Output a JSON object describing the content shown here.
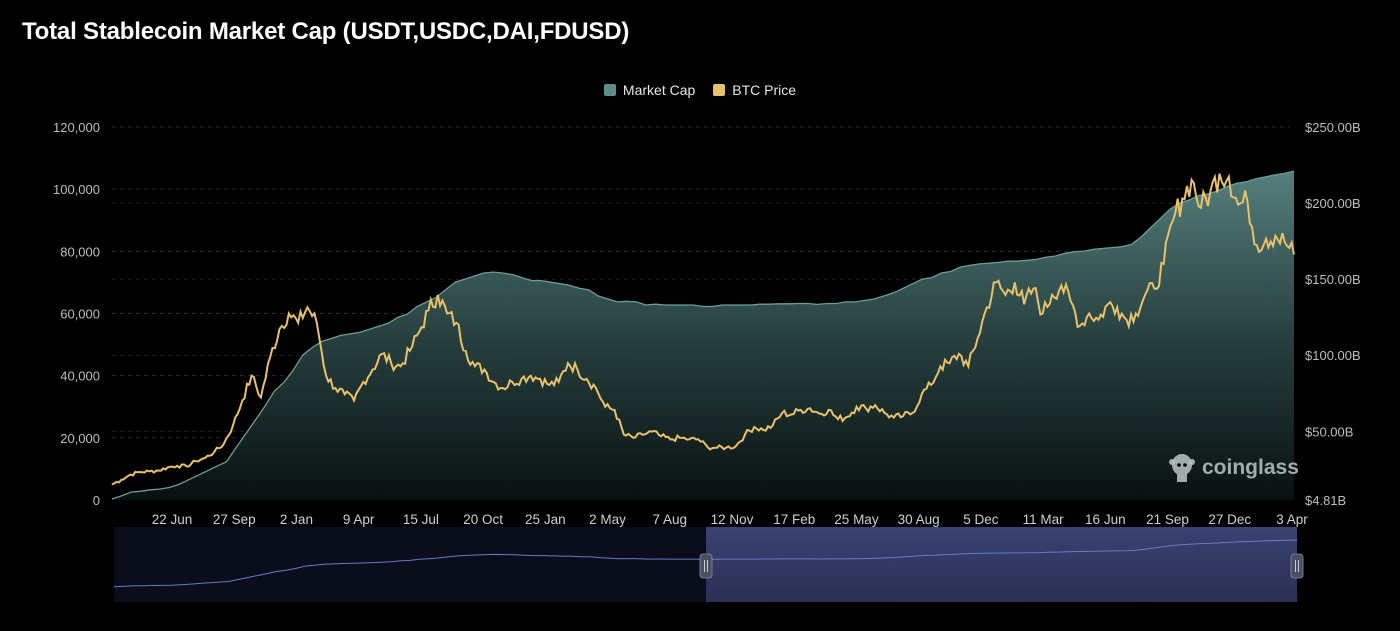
{
  "title": "Total Stablecoin Market Cap (USDT,USDC,DAI,FDUSD)",
  "legend": [
    {
      "label": "Market Cap",
      "color": "#5f8f8c"
    },
    {
      "label": "BTC Price",
      "color": "#e8c16b"
    }
  ],
  "watermark": {
    "text": "coinglass",
    "icon": "coinglass-logo-icon"
  },
  "colors": {
    "market_cap_line": "#6e9c99",
    "btc_line": "#e8c16b",
    "background": "#000000",
    "navigator_fill": "#2a2f52"
  },
  "chart_data": {
    "type": "line",
    "x_tick_labels": [
      "22 Jun",
      "27 Sep",
      "2 Jan",
      "9 Apr",
      "15 Jul",
      "20 Oct",
      "25 Jan",
      "2 May",
      "7 Aug",
      "12 Nov",
      "17 Feb",
      "25 May",
      "30 Aug",
      "5 Dec",
      "11 Mar",
      "16 Jun",
      "21 Sep",
      "27 Dec",
      "3 Apr"
    ],
    "left_axis": {
      "ticks": [
        "0",
        "20,000",
        "40,000",
        "60,000",
        "80,000",
        "100,000",
        "120,000"
      ],
      "range": [
        0,
        120000
      ]
    },
    "right_axis": {
      "ticks": [
        "$4.81B",
        "$50.00B",
        "$100.00B",
        "$150.00B",
        "$200.00B",
        "$250.00B"
      ],
      "range": [
        4.81,
        250
      ]
    },
    "grid": true,
    "legend_position": "top-center",
    "series": [
      {
        "name": "BTC Price",
        "axis": "left",
        "values": [
          5000,
          6500,
          8200,
          9000,
          9200,
          9500,
          10500,
          11000,
          10800,
          12500,
          13500,
          15500,
          18000,
          24000,
          32000,
          40000,
          33000,
          46000,
          55000,
          60000,
          57000,
          62000,
          57000,
          40000,
          36000,
          34000,
          32000,
          38000,
          42000,
          47000,
          44000,
          43000,
          48000,
          54000,
          61000,
          66000,
          60000,
          57000,
          48000,
          43000,
          42000,
          38000,
          36000,
          38000,
          39000,
          40000,
          39000,
          37000,
          38000,
          44000,
          42000,
          39000,
          36000,
          30000,
          29000,
          21000,
          20000,
          21000,
          22000,
          20500,
          19500,
          20000,
          19500,
          19500,
          17000,
          16800,
          16900,
          17200,
          21000,
          23500,
          22500,
          24000,
          28000,
          27500,
          29000,
          29500,
          27800,
          29000,
          26000,
          26800,
          30000,
          29500,
          30500,
          28000,
          26500,
          27000,
          28000,
          34000,
          37000,
          43000,
          44000,
          47000,
          43000,
          52000,
          62000,
          70000,
          66000,
          70000,
          63000,
          68000,
          60000,
          66000,
          69000,
          64000,
          56000,
          60000,
          58000,
          63000,
          62000,
          58000,
          60000,
          66000,
          68000,
          76000,
          90000,
          97000,
          103000,
          94000,
          99000,
          105000,
          104000,
          95000,
          96000,
          82000,
          84000,
          85000,
          83000,
          79000
        ]
      },
      {
        "name": "Market Cap",
        "axis": "right",
        "unit": "$B",
        "values": [
          5.5,
          7.5,
          10,
          10.5,
          11.5,
          12,
          13,
          15,
          18,
          21,
          24,
          27,
          30,
          39,
          48,
          57,
          66,
          76,
          82,
          90,
          100,
          105,
          109,
          111,
          113,
          114,
          115,
          117,
          119,
          121,
          125,
          127,
          132,
          135,
          138,
          143,
          148,
          150,
          152,
          154,
          154.6,
          154,
          153,
          151,
          149,
          149,
          148,
          147,
          146,
          144,
          143,
          139,
          137,
          135,
          135.4,
          135,
          133,
          133.5,
          133,
          133,
          133,
          133,
          132,
          132,
          133,
          133,
          133,
          133,
          133.5,
          133.5,
          133.8,
          133.8,
          134,
          134,
          133.4,
          134,
          134,
          135,
          135,
          136,
          137,
          139,
          141,
          144,
          147,
          150,
          151,
          154,
          155,
          158,
          159,
          160,
          160.5,
          161,
          161.8,
          161.8,
          162.4,
          163,
          164.5,
          165.2,
          167,
          168,
          168.4,
          169.6,
          170.2,
          170.8,
          171.4,
          173,
          178,
          184,
          190,
          196,
          200,
          202,
          205,
          206,
          208,
          211,
          213,
          214,
          216,
          217.2,
          218.5,
          219.5,
          221
        ]
      }
    ]
  }
}
